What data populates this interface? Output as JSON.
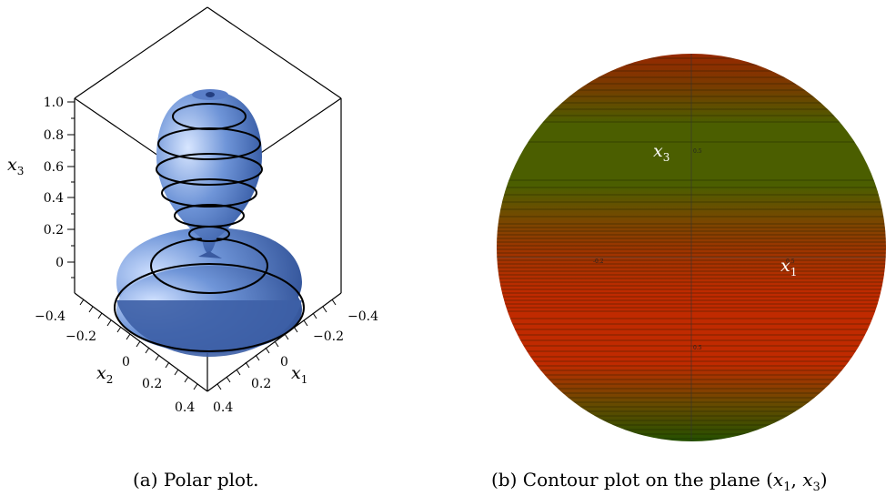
{
  "figure_a": {
    "caption": "(a) Polar plot.",
    "z_ticks": [
      "1.0",
      "0.8",
      "0.6",
      "0.4",
      "0.2",
      "0"
    ],
    "x2_ticks": [
      "−0.4",
      "−0.2",
      "0",
      "0.2",
      "0.4"
    ],
    "x1_ticks": [
      "−0.4",
      "−0.2",
      "0",
      "0.2",
      "0.4"
    ],
    "z_label": "x",
    "z_label_sub": "3",
    "x2_label": "x",
    "x2_label_sub": "2",
    "x1_label": "x",
    "x1_label_sub": "1",
    "surface_color": "#6f95d8"
  },
  "figure_b": {
    "caption_prefix": "(b) Contour plot on the plane (",
    "caption_var1": "x",
    "caption_sub1": "1",
    "caption_sep": ", ",
    "caption_var2": "x",
    "caption_sub2": "3",
    "caption_suffix": ")",
    "x3_label": "x",
    "x3_label_sub": "3",
    "x1_label": "x",
    "x1_label_sub": "1",
    "colors": {
      "green": "#4b5e00",
      "red": "#c02a00",
      "dark_green": "#245000"
    }
  }
}
